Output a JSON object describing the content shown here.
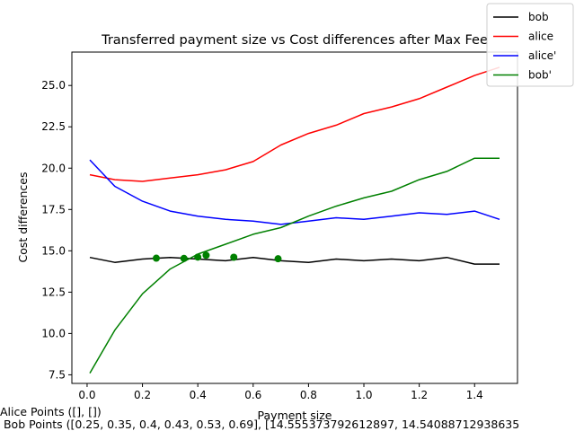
{
  "chart_data": {
    "type": "line",
    "title": "Transferred payment size vs Cost differences after Max Fee",
    "xlabel": "Payment size",
    "ylabel": "Cost differences",
    "xlim": [
      -0.055,
      1.555
    ],
    "ylim": [
      6.98,
      27.02
    ],
    "xticks": [
      "0.0",
      "0.2",
      "0.4",
      "0.6",
      "0.8",
      "1.0",
      "1.2",
      "1.4"
    ],
    "yticks": [
      "7.5",
      "10.0",
      "12.5",
      "15.0",
      "17.5",
      "20.0",
      "22.5",
      "25.0"
    ],
    "grid": false,
    "legend_position": "top-right",
    "series": [
      {
        "name": "bob",
        "color": "#000000",
        "x": [
          0.01,
          0.1,
          0.2,
          0.3,
          0.4,
          0.5,
          0.6,
          0.7,
          0.8,
          0.9,
          1.0,
          1.1,
          1.2,
          1.3,
          1.4,
          1.49
        ],
        "y": [
          14.6,
          14.3,
          14.5,
          14.6,
          14.5,
          14.4,
          14.6,
          14.4,
          14.3,
          14.5,
          14.4,
          14.5,
          14.4,
          14.6,
          14.2,
          14.2
        ]
      },
      {
        "name": "alice",
        "color": "#ff0000",
        "x": [
          0.01,
          0.1,
          0.2,
          0.3,
          0.4,
          0.5,
          0.6,
          0.7,
          0.8,
          0.9,
          1.0,
          1.1,
          1.2,
          1.3,
          1.4,
          1.49
        ],
        "y": [
          19.6,
          19.3,
          19.2,
          19.4,
          19.6,
          19.9,
          20.4,
          21.4,
          22.1,
          22.6,
          23.3,
          23.7,
          24.2,
          24.9,
          25.6,
          26.1
        ]
      },
      {
        "name": "alice'",
        "color": "#0000ff",
        "x": [
          0.01,
          0.1,
          0.2,
          0.3,
          0.4,
          0.5,
          0.6,
          0.7,
          0.8,
          0.9,
          1.0,
          1.1,
          1.2,
          1.3,
          1.4,
          1.49
        ],
        "y": [
          20.5,
          18.9,
          18.0,
          17.4,
          17.1,
          16.9,
          16.8,
          16.6,
          16.8,
          17.0,
          16.9,
          17.1,
          17.3,
          17.2,
          17.4,
          16.9
        ]
      },
      {
        "name": "bob'",
        "color": "#008000",
        "x": [
          0.01,
          0.1,
          0.2,
          0.3,
          0.4,
          0.5,
          0.6,
          0.7,
          0.8,
          0.9,
          1.0,
          1.1,
          1.2,
          1.3,
          1.4,
          1.49
        ],
        "y": [
          7.6,
          10.2,
          12.4,
          13.9,
          14.8,
          15.4,
          16.0,
          16.4,
          17.1,
          17.7,
          18.2,
          18.6,
          19.3,
          19.8,
          20.6,
          20.6
        ]
      }
    ],
    "markers": {
      "series": "bob'",
      "color": "#008000",
      "x": [
        0.25,
        0.35,
        0.4,
        0.43,
        0.53,
        0.69
      ],
      "y": [
        14.555,
        14.541,
        14.62,
        14.73,
        14.61,
        14.52
      ]
    }
  },
  "captions": {
    "alice_points": "Alice Points ([], [])",
    "bob_points": " Bob Points ([0.25, 0.35, 0.4, 0.43, 0.53, 0.69], [14.555373792612897, 14.54088712938635"
  }
}
